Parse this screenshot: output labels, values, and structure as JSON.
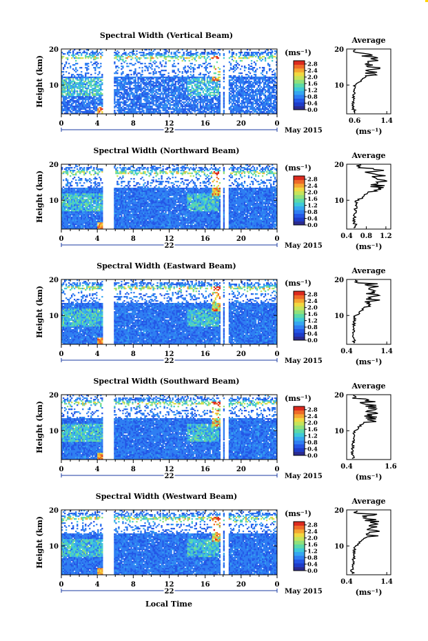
{
  "figure": {
    "date_label": "May 2015",
    "xlabel_bottom": "Local Time",
    "corner_mark_color": "#ffd400"
  },
  "colormap": [
    "#2b2b8f",
    "#1e3cc8",
    "#2456e6",
    "#2f7ef2",
    "#36a6f0",
    "#3fc9d8",
    "#5bd9a8",
    "#8fe07c",
    "#c6e35a",
    "#f0d840",
    "#f5a531",
    "#ee6a28",
    "#dc2a1e"
  ],
  "chart_data": [
    {
      "type": "heatmap",
      "title": "Spectral Width (Vertical Beam)",
      "ylabel": "Height (km)",
      "ylim": [
        2,
        20
      ],
      "yticks": [
        10,
        20
      ],
      "xlim": [
        0,
        24
      ],
      "xticks": [
        "0",
        "4",
        "8",
        "12",
        "16",
        "20",
        "0"
      ],
      "day_label": "22",
      "colorbar": {
        "unit": "(ms⁻¹)",
        "range": [
          0,
          3.0
        ],
        "ticks": [
          "2.8",
          "2.4",
          "2.0",
          "1.6",
          "1.2",
          "0.8",
          "0.4",
          "0.0"
        ]
      },
      "data_gaps_hours": [
        [
          4.6,
          5.8
        ],
        [
          17.7,
          18.0
        ],
        [
          18.2,
          18.6
        ]
      ],
      "average": {
        "title": "Average",
        "xlabel": "(ms⁻¹)",
        "xlim": [
          0.4,
          1.5
        ],
        "xticks": [
          "0.6",
          "1.4"
        ],
        "ylim": [
          2,
          20
        ],
        "yticks": [
          10,
          20
        ]
      }
    },
    {
      "type": "heatmap",
      "title": "Spectral Width (Northward Beam)",
      "ylabel": "Height (km)",
      "ylim": [
        2,
        20
      ],
      "yticks": [
        10,
        20
      ],
      "xlim": [
        0,
        24
      ],
      "xticks": [
        "0",
        "4",
        "8",
        "12",
        "16",
        "20",
        "0"
      ],
      "day_label": "22",
      "colorbar": {
        "unit": "(ms⁻¹)",
        "range": [
          0,
          3.0
        ],
        "ticks": [
          "2.8",
          "2.4",
          "2.0",
          "1.6",
          "1.2",
          "0.8",
          "0.4",
          "0.0"
        ]
      },
      "data_gaps_hours": [
        [
          4.6,
          5.8
        ],
        [
          17.7,
          18.0
        ],
        [
          18.2,
          18.6
        ]
      ],
      "average": {
        "title": "Average",
        "xlabel": "(ms⁻¹)",
        "xlim": [
          0.4,
          1.3
        ],
        "xticks": [
          "0.4",
          "0.8",
          "1.2"
        ],
        "ylim": [
          2,
          20
        ],
        "yticks": [
          10,
          20
        ]
      }
    },
    {
      "type": "heatmap",
      "title": "Spectral Width (Eastward Beam)",
      "ylabel": "Height (km)",
      "ylim": [
        2,
        20
      ],
      "yticks": [
        10,
        20
      ],
      "xlim": [
        0,
        24
      ],
      "xticks": [
        "0",
        "4",
        "8",
        "12",
        "16",
        "20",
        "0"
      ],
      "day_label": "22",
      "colorbar": {
        "unit": "(ms⁻¹)",
        "range": [
          0,
          3.0
        ],
        "ticks": [
          "2.8",
          "2.4",
          "2.0",
          "1.6",
          "1.2",
          "0.8",
          "0.4",
          "0.0"
        ]
      },
      "data_gaps_hours": [
        [
          4.6,
          5.8
        ],
        [
          17.7,
          18.0
        ],
        [
          18.2,
          18.6
        ]
      ],
      "average": {
        "title": "Average",
        "xlabel": "(ms⁻¹)",
        "xlim": [
          0.4,
          1.5
        ],
        "xticks": [
          "0.4",
          "1.4"
        ],
        "ylim": [
          2,
          20
        ],
        "yticks": [
          10,
          20
        ]
      }
    },
    {
      "type": "heatmap",
      "title": "Spectral Width (Southward Beam)",
      "ylabel": "Height (km)",
      "ylim": [
        2,
        20
      ],
      "yticks": [
        10,
        20
      ],
      "xlim": [
        0,
        24
      ],
      "xticks": [
        "0",
        "4",
        "8",
        "12",
        "16",
        "20",
        "0"
      ],
      "day_label": "22",
      "colorbar": {
        "unit": "(ms⁻¹)",
        "range": [
          0,
          3.0
        ],
        "ticks": [
          "2.8",
          "2.4",
          "2.0",
          "1.6",
          "1.2",
          "0.8",
          "0.4",
          "0.0"
        ]
      },
      "data_gaps_hours": [
        [
          4.6,
          5.8
        ],
        [
          17.7,
          18.0
        ],
        [
          18.2,
          18.6
        ]
      ],
      "average": {
        "title": "Average",
        "xlabel": "(ms⁻¹)",
        "xlim": [
          0.4,
          1.6
        ],
        "xticks": [
          "0.4",
          "1.6"
        ],
        "ylim": [
          2,
          20
        ],
        "yticks": [
          10,
          20
        ]
      }
    },
    {
      "type": "heatmap",
      "title": "Spectral Width (Westward Beam)",
      "ylabel": "Height (km)",
      "ylim": [
        2,
        20
      ],
      "yticks": [
        10,
        20
      ],
      "xlim": [
        0,
        24
      ],
      "xticks": [
        "0",
        "4",
        "8",
        "12",
        "16",
        "20",
        "0"
      ],
      "day_label": "22",
      "colorbar": {
        "unit": "(ms⁻¹)",
        "range": [
          0,
          3.0
        ],
        "ticks": [
          "2.8",
          "2.4",
          "2.0",
          "1.6",
          "1.2",
          "0.8",
          "0.4",
          "0.0"
        ]
      },
      "data_gaps_hours": [
        [
          4.6,
          5.8
        ],
        [
          17.7,
          18.0
        ],
        [
          18.2,
          18.6
        ]
      ],
      "average": {
        "title": "Average",
        "xlabel": "(ms⁻¹)",
        "xlim": [
          0.4,
          1.5
        ],
        "xticks": [
          "0.4",
          "1.4"
        ],
        "ylim": [
          2,
          20
        ],
        "yticks": [
          10,
          20
        ]
      }
    }
  ]
}
